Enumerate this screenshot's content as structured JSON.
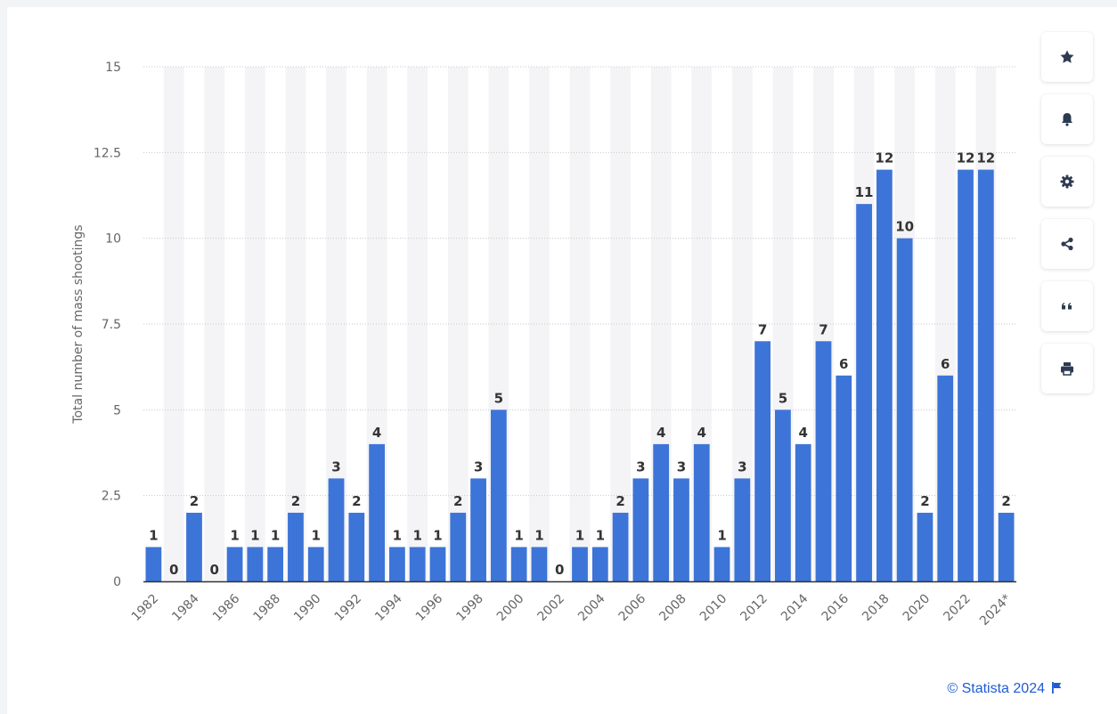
{
  "toolbar": {
    "buttons": [
      {
        "name": "favorite-button",
        "icon": "star-icon"
      },
      {
        "name": "notification-button",
        "icon": "bell-icon"
      },
      {
        "name": "settings-button",
        "icon": "gear-icon"
      },
      {
        "name": "share-button",
        "icon": "share-icon"
      },
      {
        "name": "cite-button",
        "icon": "quote-icon"
      },
      {
        "name": "print-button",
        "icon": "printer-icon"
      }
    ]
  },
  "credit": {
    "text": "© Statista 2024"
  },
  "colors": {
    "bar": "#3d74d8",
    "label": "#333333",
    "tick": "#666666",
    "grid": "#c8c8c8",
    "band": "#f4f4f6",
    "icon": "#2d3b52",
    "credit": "#1e5bd6"
  },
  "chart_data": {
    "type": "bar",
    "ylabel": "Total number of mass shootings",
    "xlabel": "",
    "ylim": [
      0,
      15
    ],
    "yticks": [
      "0",
      "2.5",
      "5",
      "7.5",
      "10",
      "12.5",
      "15"
    ],
    "grid": true,
    "data_labels": true,
    "categories": [
      "1982",
      "1983",
      "1984",
      "1985",
      "1986",
      "1987",
      "1988",
      "1989",
      "1990",
      "1991",
      "1992",
      "1993",
      "1994",
      "1995",
      "1996",
      "1997",
      "1998",
      "1999",
      "2000",
      "2001",
      "2002",
      "2003",
      "2004",
      "2005",
      "2006",
      "2007",
      "2008",
      "2009",
      "2010",
      "2011",
      "2012",
      "2013",
      "2014",
      "2015",
      "2016",
      "2017",
      "2018",
      "2019",
      "2020",
      "2021",
      "2022",
      "2023",
      "2024*"
    ],
    "visible_xticks": [
      "1982",
      "1984",
      "1986",
      "1988",
      "1990",
      "1992",
      "1994",
      "1996",
      "1998",
      "2000",
      "2002",
      "2004",
      "2006",
      "2008",
      "2010",
      "2012",
      "2014",
      "2016",
      "2018",
      "2020",
      "2022",
      "2024*"
    ],
    "values": [
      1,
      0,
      2,
      0,
      1,
      1,
      1,
      2,
      1,
      3,
      2,
      4,
      1,
      1,
      1,
      2,
      3,
      5,
      1,
      1,
      0,
      1,
      1,
      2,
      3,
      4,
      3,
      4,
      1,
      3,
      7,
      5,
      4,
      7,
      6,
      11,
      12,
      10,
      2,
      6,
      12,
      12,
      2
    ]
  }
}
